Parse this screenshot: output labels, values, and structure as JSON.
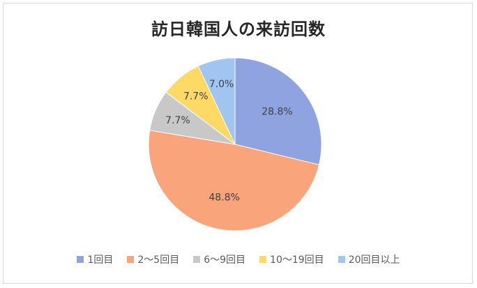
{
  "chart_data": {
    "type": "pie",
    "title": "訪日韓国人の来訪回数",
    "categories": [
      "1回目",
      "2〜5回目",
      "6〜9回目",
      "10〜19回目",
      "20回目以上"
    ],
    "values": [
      28.8,
      48.8,
      7.7,
      7.7,
      7.0
    ],
    "data_labels": [
      "28.8%",
      "48.8%",
      "7.7%",
      "7.7%",
      "7.0%"
    ],
    "colors": [
      "#8fa3e0",
      "#f9a47a",
      "#c8c8c8",
      "#ffd966",
      "#9fc5f0"
    ],
    "legend_position": "bottom"
  }
}
